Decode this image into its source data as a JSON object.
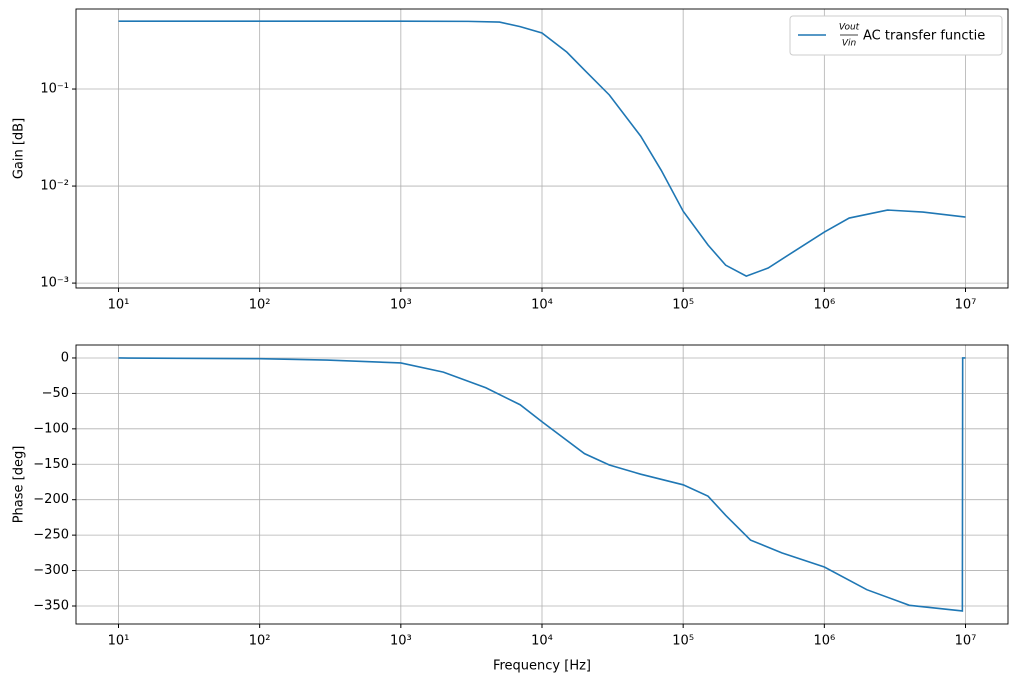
{
  "chart_data": [
    {
      "type": "line",
      "xlog": true,
      "ylog": true,
      "grid": true,
      "ylabel": "Gain [dB]",
      "xlim": [
        5,
        20000000
      ],
      "ylim": [
        0.00089,
        0.668
      ],
      "xticks": [
        {
          "value": 10,
          "label": "10¹"
        },
        {
          "value": 100,
          "label": "10²"
        },
        {
          "value": 1000,
          "label": "10³"
        },
        {
          "value": 10000,
          "label": "10⁴"
        },
        {
          "value": 100000,
          "label": "10⁵"
        },
        {
          "value": 1000000,
          "label": "10⁶"
        },
        {
          "value": 10000000,
          "label": "10⁷"
        }
      ],
      "yticks": [
        {
          "value": 0.001,
          "label": "10⁻³"
        },
        {
          "value": 0.01,
          "label": "10⁻²"
        },
        {
          "value": 0.1,
          "label": "10⁻¹"
        }
      ],
      "legend": "upper right",
      "legend_math": {
        "numerator": "Vout",
        "denominator": "Vin"
      },
      "x": [
        10,
        100,
        1000,
        3000,
        5000,
        7000,
        10000,
        15000,
        20000,
        30000,
        50000,
        70000,
        100000,
        150000,
        200000,
        280000,
        400000,
        600000,
        1000000,
        1500000,
        2800000,
        5000000,
        10000000
      ],
      "series": [
        {
          "name": "AC transfer functie",
          "color": "#1f77b4",
          "values": [
            0.5,
            0.5,
            0.5,
            0.498,
            0.49,
            0.44,
            0.378,
            0.24,
            0.157,
            0.0868,
            0.0327,
            0.0145,
            0.0055,
            0.00247,
            0.00153,
            0.00118,
            0.00143,
            0.00209,
            0.00336,
            0.00468,
            0.00566,
            0.0054,
            0.00479
          ]
        }
      ]
    },
    {
      "type": "line",
      "xlog": true,
      "ylog": false,
      "grid": true,
      "ylabel": "Phase [deg]",
      "xlabel": "Frequency [Hz]",
      "xlim": [
        5,
        20000000
      ],
      "ylim": [
        -375.4,
        18.3
      ],
      "xticks": [
        {
          "value": 10,
          "label": "10¹"
        },
        {
          "value": 100,
          "label": "10²"
        },
        {
          "value": 1000,
          "label": "10³"
        },
        {
          "value": 10000,
          "label": "10⁴"
        },
        {
          "value": 100000,
          "label": "10⁵"
        },
        {
          "value": 1000000,
          "label": "10⁶"
        },
        {
          "value": 10000000,
          "label": "10⁷"
        }
      ],
      "yticks": [
        0,
        {
          "value": -50,
          "label": "−50"
        },
        {
          "value": -100,
          "label": "−100"
        },
        {
          "value": -150,
          "label": "−150"
        },
        {
          "value": -200,
          "label": "−200"
        },
        {
          "value": -250,
          "label": "−250"
        },
        {
          "value": -300,
          "label": "−300"
        },
        {
          "value": -350,
          "label": "−350"
        }
      ],
      "x": [
        10,
        100,
        300,
        1000,
        2000,
        4000,
        7000,
        10000,
        20000,
        30000,
        50000,
        100000,
        150000,
        200000,
        300000,
        500000,
        1000000,
        2000000,
        4000000,
        9500000,
        9550000,
        10000000
      ],
      "series": [
        {
          "color": "#1f77b4",
          "values": [
            0,
            -1,
            -3,
            -7,
            -20,
            -42,
            -66,
            -90,
            -135,
            -151,
            -164,
            -179,
            -195,
            -222,
            -257,
            -275,
            -295,
            -327,
            -349,
            -357,
            0,
            0
          ]
        }
      ]
    }
  ]
}
